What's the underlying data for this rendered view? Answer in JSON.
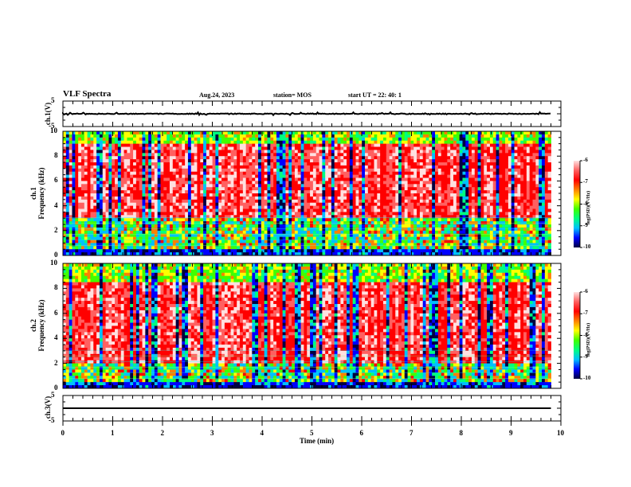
{
  "header": {
    "title": "VLF Spectra",
    "date": "Aug.24, 2023",
    "station": "station= MOS",
    "start": "start  UT =   22: 40: 1"
  },
  "panels": {
    "ch1_wave": {
      "ylabel": "ch.1(V)",
      "yticks": [
        "5",
        "-5"
      ]
    },
    "ch1_spec": {
      "ylabel_line1": "ch.1",
      "ylabel_line2": "Frequency (kHz)",
      "yticks": [
        "10",
        "8",
        "6",
        "4",
        "2",
        "0"
      ]
    },
    "ch2_spec": {
      "ylabel_line1": "ch.2",
      "ylabel_line2": "Frequency (kHz)",
      "yticks": [
        "10",
        "8",
        "6",
        "4",
        "2",
        "0"
      ]
    },
    "ch3_wave": {
      "ylabel": "ch.3(V)",
      "yticks": [
        "5",
        "-5"
      ]
    }
  },
  "colorbar": {
    "label": "log(PSD)(V²/Hz)",
    "ticks": [
      "-6",
      "-7",
      "-8",
      "-9",
      "-10"
    ],
    "colors": [
      "#000040",
      "#0000ff",
      "#00c0ff",
      "#00ff80",
      "#40ff00",
      "#ffff00",
      "#ff8000",
      "#ff0000",
      "#ff6060",
      "#ffe0e0"
    ]
  },
  "xaxis": {
    "label": "Time  (min)",
    "ticks": [
      "0",
      "1",
      "2",
      "3",
      "4",
      "5",
      "6",
      "7",
      "8",
      "9",
      "10"
    ]
  },
  "chart_data": {
    "type": "heatmap",
    "title": "VLF Spectra",
    "xlabel": "Time  (min)",
    "xlim": [
      0,
      10
    ],
    "data_end_min": 9.8,
    "series": [
      {
        "name": "ch.1(V)",
        "kind": "waveform",
        "ylim": [
          -5,
          5
        ],
        "level": 0
      },
      {
        "name": "ch.1 Frequency (kHz)",
        "kind": "spectrogram",
        "ylim": [
          0,
          10
        ],
        "zlim": [
          -10,
          -6
        ],
        "peak_band_khz": [
          3,
          9
        ]
      },
      {
        "name": "ch.2 Frequency (kHz)",
        "kind": "spectrogram",
        "ylim": [
          0,
          10
        ],
        "zlim": [
          -10,
          -6
        ],
        "peak_band_khz": [
          2,
          8.5
        ]
      },
      {
        "name": "ch.3(V)",
        "kind": "waveform",
        "ylim": [
          -5,
          5
        ],
        "level": 0
      }
    ]
  }
}
